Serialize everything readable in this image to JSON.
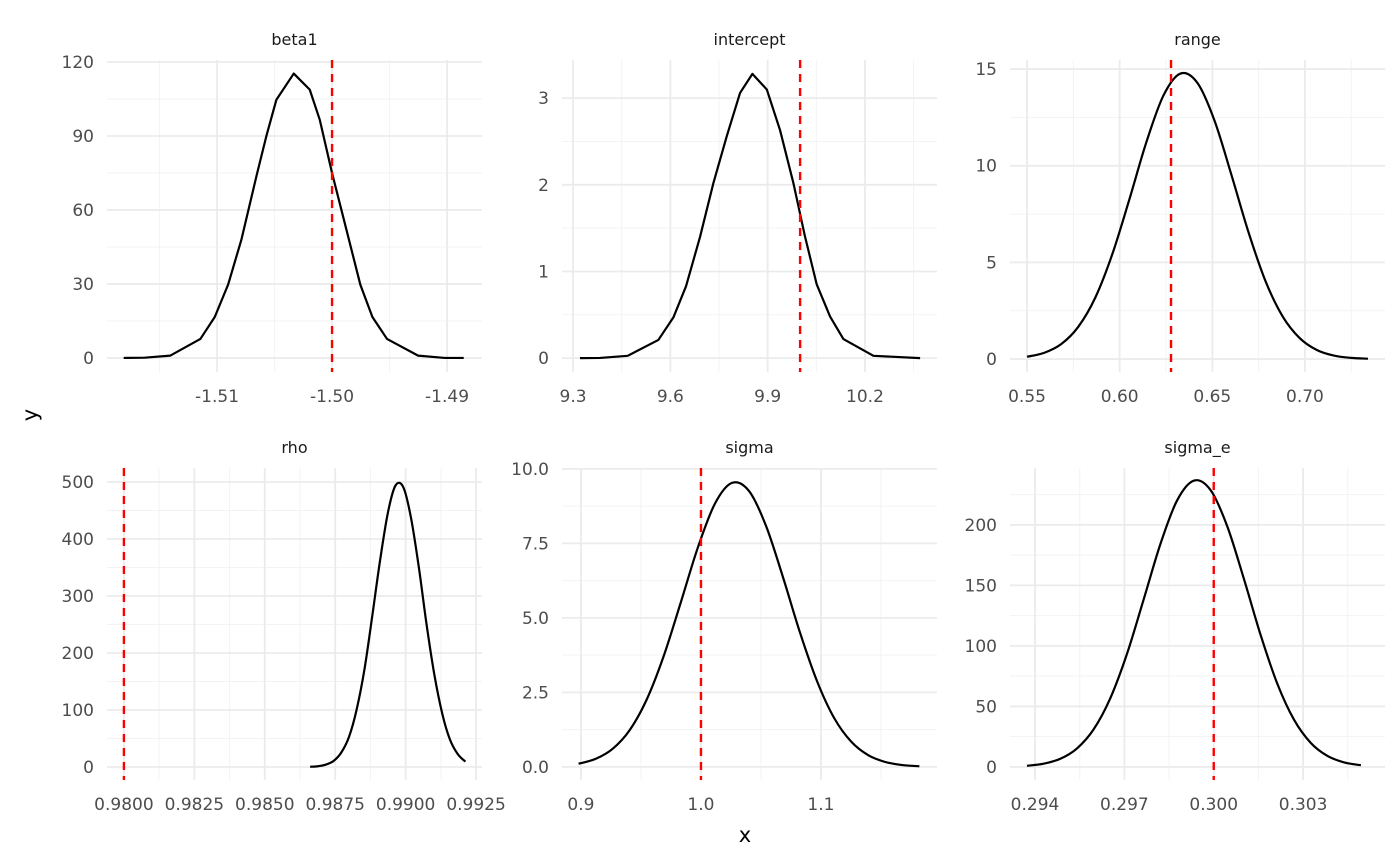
{
  "chart_data": {
    "type": "line",
    "xlabel": "x",
    "ylabel": "y",
    "grid": true,
    "colors": {
      "density": "#000000",
      "reference_line": "#ff0000",
      "grid_major": "#ebebeb",
      "grid_minor": "#f3f3f3",
      "tick_text": "#4d4d4d"
    },
    "panels": [
      {
        "title": "beta1",
        "xlim": [
          -1.51957,
          -1.48696
        ],
        "ylim": [
          -5.7,
          120.8
        ],
        "xticks": [
          -1.51,
          -1.5,
          -1.49
        ],
        "xtick_labels": [
          "-1.51",
          "-1.50",
          "-1.49"
        ],
        "xminor": [
          -1.515,
          -1.505,
          -1.495
        ],
        "yticks": [
          0,
          30,
          60,
          90,
          120
        ],
        "ytick_labels": [
          "0",
          "30",
          "60",
          "90",
          "120"
        ],
        "yminor": [
          15,
          45,
          75,
          105
        ],
        "reference_x": -1.5,
        "x": [
          -1.51812,
          -1.51629,
          -1.51406,
          -1.51145,
          -1.5102,
          -1.50904,
          -1.50788,
          -1.50658,
          -1.50571,
          -1.50484,
          -1.50333,
          -1.50194,
          -1.50107,
          -1.5,
          -1.49875,
          -1.49754,
          -1.49649,
          -1.49522,
          -1.49252,
          -1.4902,
          -1.48855
        ],
        "y": [
          0,
          0.1,
          0.95,
          7.7,
          16.6,
          29.7,
          48,
          73.6,
          90,
          104.7,
          115.3,
          108.8,
          96.6,
          75,
          52,
          29.7,
          16.6,
          7.7,
          0.95,
          0,
          0
        ]
      },
      {
        "title": "intercept",
        "xlim": [
          9.266,
          10.422
        ],
        "ylim": [
          -0.16,
          3.44
        ],
        "xticks": [
          9.3,
          9.6,
          9.9,
          10.2
        ],
        "xtick_labels": [
          "9.3",
          "9.6",
          "9.9",
          "10.2"
        ],
        "xminor": [
          9.45,
          9.75,
          10.05,
          10.35
        ],
        "yticks": [
          0,
          1,
          2,
          3
        ],
        "ytick_labels": [
          "0",
          "1",
          "2",
          "3"
        ],
        "yminor": [
          0.5,
          1.5,
          2.5
        ],
        "reference_x": 10.0,
        "x": [
          9.3216,
          9.3832,
          9.4686,
          9.5631,
          9.6094,
          9.6484,
          9.6916,
          9.7327,
          9.7738,
          9.8149,
          9.8529,
          9.8973,
          9.9382,
          9.9793,
          10.0153,
          10.0513,
          10.0924,
          10.1335,
          10.226,
          10.3699
        ],
        "y": [
          0,
          0.002,
          0.027,
          0.21,
          0.47,
          0.83,
          1.4,
          2.02,
          2.56,
          3.06,
          3.28,
          3.1,
          2.63,
          2.02,
          1.4,
          0.85,
          0.48,
          0.22,
          0.027,
          0
        ]
      },
      {
        "title": "range",
        "xlim": [
          0.5408,
          0.7432
        ],
        "ylim": [
          -0.67,
          15.47
        ],
        "xticks": [
          0.55,
          0.6,
          0.65,
          0.7
        ],
        "xtick_labels": [
          "0.55",
          "0.60",
          "0.65",
          "0.70"
        ],
        "xminor": [
          0.575,
          0.625,
          0.675,
          0.725
        ],
        "yticks": [
          0,
          5,
          10,
          15
        ],
        "ytick_labels": [
          "0",
          "5",
          "10",
          "15"
        ],
        "yminor": [
          2.5,
          7.5,
          12.5
        ],
        "reference_x": 0.6277,
        "x": [
          0.55,
          0.5592,
          0.5684,
          0.5776,
          0.5868,
          0.596,
          0.6052,
          0.6144,
          0.6236,
          0.6328,
          0.642,
          0.6512,
          0.6604,
          0.6696,
          0.6788,
          0.688,
          0.6972,
          0.7064,
          0.7156,
          0.7248,
          0.734
        ],
        "y": [
          0.12,
          0.32,
          0.77,
          1.66,
          3.17,
          5.42,
          8.25,
          11.22,
          13.63,
          14.77,
          14.28,
          12.33,
          9.5,
          6.54,
          4.01,
          2.2,
          1.08,
          0.47,
          0.18,
          0.06,
          0.02
        ]
      },
      {
        "title": "rho",
        "xlim": [
          0.9794,
          0.99271
        ],
        "ylim": [
          -22.8,
          524.6
        ],
        "xticks": [
          0.98,
          0.9825,
          0.985,
          0.9875,
          0.99,
          0.9925
        ],
        "xtick_labels": [
          "0.9800",
          "0.9825",
          "0.9850",
          "0.9875",
          "0.9900",
          "0.9925"
        ],
        "xminor": [
          0.98125,
          0.98375,
          0.98625,
          0.98875,
          0.99125
        ],
        "yticks": [
          0,
          100,
          200,
          300,
          400,
          500
        ],
        "ytick_labels": [
          "0",
          "100",
          "200",
          "300",
          "400",
          "500"
        ],
        "yminor": [
          50,
          150,
          250,
          350,
          450
        ],
        "reference_x": 0.98,
        "x": [
          0.98661,
          0.98689,
          0.98716,
          0.98744,
          0.98771,
          0.98799,
          0.98826,
          0.98854,
          0.98881,
          0.98909,
          0.98937,
          0.98964,
          0.98992,
          0.99019,
          0.99047,
          0.99074,
          0.99102,
          0.9913,
          0.99157,
          0.99185,
          0.99212
        ],
        "y": [
          0.42,
          1.37,
          4.03,
          10.6,
          25.0,
          52.9,
          100.7,
          171.9,
          263.2,
          361.7,
          446.2,
          493.9,
          490.5,
          437.2,
          349.8,
          251.0,
          161.7,
          93.5,
          48.5,
          22.6,
          9.43
        ]
      },
      {
        "title": "sigma",
        "xlim": [
          0.8842,
          1.1967
        ],
        "ylim": [
          -0.44,
          10.03
        ],
        "xticks": [
          0.9,
          1.0,
          1.1
        ],
        "xtick_labels": [
          "0.9",
          "1.0",
          "1.1"
        ],
        "xminor": [
          0.95,
          1.05,
          1.15
        ],
        "yticks": [
          0,
          2.5,
          5,
          7.5,
          10
        ],
        "ytick_labels": [
          "0.0",
          "2.5",
          "5.0",
          "7.5",
          "10.0"
        ],
        "yminor": [
          1.25,
          3.75,
          6.25,
          8.75
        ],
        "reference_x": 1.0,
        "x": [
          0.898,
          0.9122,
          0.9264,
          0.9406,
          0.9548,
          0.969,
          0.9832,
          0.9974,
          1.0116,
          1.0258,
          1.04,
          1.0542,
          1.0684,
          1.0826,
          1.0968,
          1.111,
          1.1252,
          1.1394,
          1.1536,
          1.1678,
          1.182
        ],
        "y": [
          0.107,
          0.269,
          0.607,
          1.235,
          2.261,
          3.725,
          5.521,
          7.36,
          8.83,
          9.53,
          9.26,
          8.09,
          6.36,
          4.5,
          2.87,
          1.64,
          0.847,
          0.392,
          0.164,
          0.061,
          0.021
        ]
      },
      {
        "title": "sigma_e",
        "xlim": [
          0.29316,
          0.30575
        ],
        "ylim": [
          -10.8,
          247
        ],
        "xticks": [
          0.294,
          0.297,
          0.3,
          0.303
        ],
        "xtick_labels": [
          "0.294",
          "0.297",
          "0.300",
          "0.303"
        ],
        "xminor": [
          0.2955,
          0.2985,
          0.3015,
          0.3045
        ],
        "yticks": [
          0,
          50,
          100,
          150,
          200
        ],
        "ytick_labels": [
          "0",
          "50",
          "100",
          "150",
          "200"
        ],
        "yminor": [
          25,
          75,
          125,
          175,
          225
        ],
        "reference_x": 0.3,
        "x": [
          0.29373,
          0.29429,
          0.29485,
          0.29541,
          0.29597,
          0.29653,
          0.29709,
          0.29765,
          0.29821,
          0.29877,
          0.29934,
          0.2999,
          0.30046,
          0.30102,
          0.30158,
          0.30214,
          0.3027,
          0.30326,
          0.30382,
          0.30438,
          0.30494
        ],
        "y": [
          0.95,
          2.67,
          6.73,
          15.3,
          31.1,
          56.9,
          93.6,
          138.6,
          184.2,
          220.2,
          236.6,
          228.5,
          198.4,
          154.8,
          108.6,
          68.4,
          38.8,
          19.8,
          9.05,
          3.72,
          1.38
        ]
      }
    ]
  }
}
